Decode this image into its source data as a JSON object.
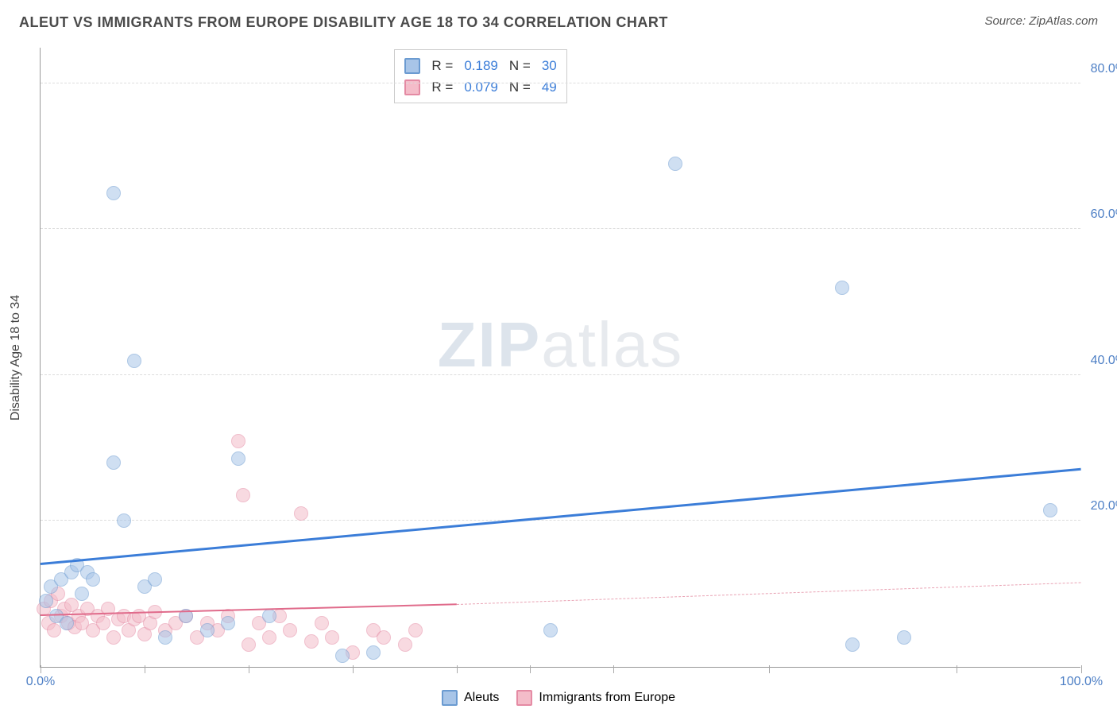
{
  "title": "ALEUT VS IMMIGRANTS FROM EUROPE DISABILITY AGE 18 TO 34 CORRELATION CHART",
  "source_label": "Source: ZipAtlas.com",
  "ylabel": "Disability Age 18 to 34",
  "watermark_a": "ZIP",
  "watermark_b": "atlas",
  "chart": {
    "type": "scatter",
    "xlim": [
      0,
      100
    ],
    "ylim": [
      0,
      85
    ],
    "x_ticks": [
      0,
      10,
      20,
      30,
      40,
      47,
      55,
      70,
      88,
      100
    ],
    "x_tick_labels": {
      "0": "0.0%",
      "100": "100.0%"
    },
    "y_ticks": [
      20,
      40,
      60,
      80
    ],
    "y_tick_labels": {
      "20": "20.0%",
      "40": "40.0%",
      "60": "60.0%",
      "80": "80.0%"
    },
    "background_color": "#ffffff",
    "grid_color": "#dddddd",
    "axis_color": "#999999",
    "marker_radius": 9,
    "marker_opacity": 0.55,
    "series": {
      "aleuts": {
        "label": "Aleuts",
        "color_fill": "#a8c5e8",
        "color_stroke": "#6b9bd1",
        "r_label": "R =",
        "r_value": "0.189",
        "n_label": "N =",
        "n_value": "30",
        "trend": {
          "x0": 0,
          "y0": 14,
          "x1": 100,
          "y1": 27,
          "color": "#3b7dd8",
          "width": 3,
          "dash": "solid"
        },
        "points": [
          [
            0.5,
            9
          ],
          [
            1,
            11
          ],
          [
            1.5,
            7
          ],
          [
            2,
            12
          ],
          [
            2.5,
            6
          ],
          [
            3,
            13
          ],
          [
            3.5,
            14
          ],
          [
            4,
            10
          ],
          [
            4.5,
            13
          ],
          [
            5,
            12
          ],
          [
            7,
            65
          ],
          [
            7,
            28
          ],
          [
            8,
            20
          ],
          [
            9,
            42
          ],
          [
            10,
            11
          ],
          [
            11,
            12
          ],
          [
            12,
            4
          ],
          [
            14,
            7
          ],
          [
            16,
            5
          ],
          [
            18,
            6
          ],
          [
            19,
            28.5
          ],
          [
            22,
            7
          ],
          [
            29,
            1.5
          ],
          [
            32,
            2
          ],
          [
            49,
            5
          ],
          [
            61,
            69
          ],
          [
            77,
            52
          ],
          [
            78,
            3
          ],
          [
            83,
            4
          ],
          [
            97,
            21.5
          ]
        ]
      },
      "europe": {
        "label": "Immigrants from Europe",
        "color_fill": "#f4bcc9",
        "color_stroke": "#e48aa3",
        "r_label": "R =",
        "r_value": "0.079",
        "n_label": "N =",
        "n_value": "49",
        "trend_solid": {
          "x0": 0,
          "y0": 7,
          "x1": 40,
          "y1": 8.5,
          "color": "#e06b8b",
          "width": 2.5,
          "dash": "solid"
        },
        "trend_dash": {
          "x0": 40,
          "y0": 8.5,
          "x1": 100,
          "y1": 11.5,
          "color": "#e9a3b4",
          "width": 1.5,
          "dash": "dashed"
        },
        "points": [
          [
            0.3,
            8
          ],
          [
            0.8,
            6
          ],
          [
            1,
            9
          ],
          [
            1.3,
            5
          ],
          [
            1.7,
            10
          ],
          [
            2,
            7
          ],
          [
            2.3,
            8
          ],
          [
            2.7,
            6
          ],
          [
            3,
            8.5
          ],
          [
            3.3,
            5.5
          ],
          [
            3.7,
            7
          ],
          [
            4,
            6
          ],
          [
            4.5,
            8
          ],
          [
            5,
            5
          ],
          [
            5.5,
            7
          ],
          [
            6,
            6
          ],
          [
            6.5,
            8
          ],
          [
            7,
            4
          ],
          [
            7.5,
            6.5
          ],
          [
            8,
            7
          ],
          [
            8.5,
            5
          ],
          [
            9,
            6.5
          ],
          [
            9.5,
            7
          ],
          [
            10,
            4.5
          ],
          [
            10.5,
            6
          ],
          [
            11,
            7.5
          ],
          [
            12,
            5
          ],
          [
            13,
            6
          ],
          [
            14,
            7
          ],
          [
            15,
            4
          ],
          [
            16,
            6
          ],
          [
            17,
            5
          ],
          [
            18,
            7
          ],
          [
            19,
            31
          ],
          [
            19.5,
            23.5
          ],
          [
            20,
            3
          ],
          [
            21,
            6
          ],
          [
            22,
            4
          ],
          [
            23,
            7
          ],
          [
            24,
            5
          ],
          [
            25,
            21
          ],
          [
            26,
            3.5
          ],
          [
            27,
            6
          ],
          [
            28,
            4
          ],
          [
            30,
            2
          ],
          [
            32,
            5
          ],
          [
            33,
            4
          ],
          [
            35,
            3
          ],
          [
            36,
            5
          ]
        ]
      }
    }
  }
}
